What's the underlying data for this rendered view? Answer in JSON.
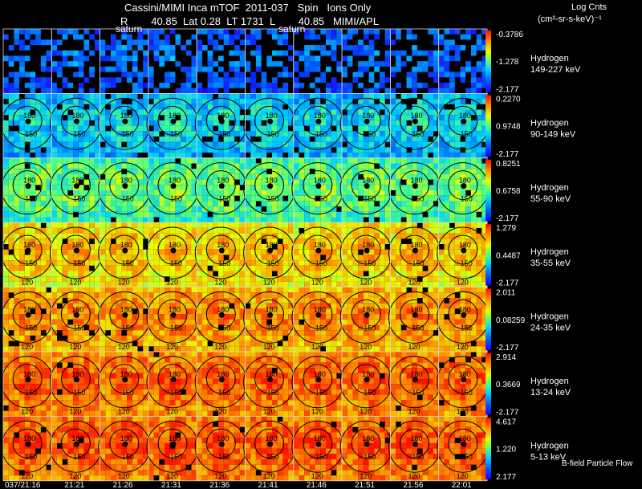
{
  "header": {
    "title": "Cassini/MIMI Inca mTOF  2011-037   Spin   Ions Only",
    "info": "R        40.85  Lat 0.28  LT 1731  L        40.85   MIMI/APL",
    "saturn_label": "saturn",
    "units_line1": "Log Cnts",
    "units_line2": "(cm²-sr-s-keV)⁻¹"
  },
  "footer": {
    "bfield_label": "B-field Particle Flow"
  },
  "chart_data": {
    "type": "heatmap",
    "title": "Cassini/MIMI Inca mTOF 2011-037 Spin Ions Only",
    "time_labels": [
      "037/21:16",
      "21:21",
      "21:26",
      "21:31",
      "21:36",
      "21:41",
      "21:46",
      "21:51",
      "21:56",
      "22:01"
    ],
    "contour_labels": [
      "120",
      "150",
      "180"
    ],
    "rows": [
      {
        "species": "Hydrogen",
        "energy": "149-227 keV",
        "max": "-0.3786",
        "mid": "-1.278",
        "min": "-2.177",
        "level": 0.18,
        "fill": 0.55
      },
      {
        "species": "Hydrogen",
        "energy": "90-149 keV",
        "max": "0.2270",
        "mid": "0.9748",
        "min": "-2.177",
        "level": 0.34,
        "fill": 0.92
      },
      {
        "species": "Hydrogen",
        "energy": "55-90 keV",
        "max": "0.8251",
        "mid": "0.6758",
        "min": "-2.177",
        "level": 0.5,
        "fill": 0.96
      },
      {
        "species": "Hydrogen",
        "energy": "35-55 keV",
        "max": "1.279",
        "mid": "0.4487",
        "min": "-2.177",
        "level": 0.72,
        "fill": 0.97
      },
      {
        "species": "Hydrogen",
        "energy": "24-35 keV",
        "max": "2.011",
        "mid": "0.08259",
        "min": "-2.177",
        "level": 0.8,
        "fill": 0.97
      },
      {
        "species": "Hydrogen",
        "energy": "13-24 keV",
        "max": "2.914",
        "mid": "0.3669",
        "min": "-2.177",
        "level": 0.86,
        "fill": 0.98
      },
      {
        "species": "Hydrogen",
        "energy": "5-13 keV",
        "max": "4.617",
        "mid": "1.220",
        "min": "2.177",
        "level": 0.88,
        "fill": 0.98
      }
    ]
  }
}
